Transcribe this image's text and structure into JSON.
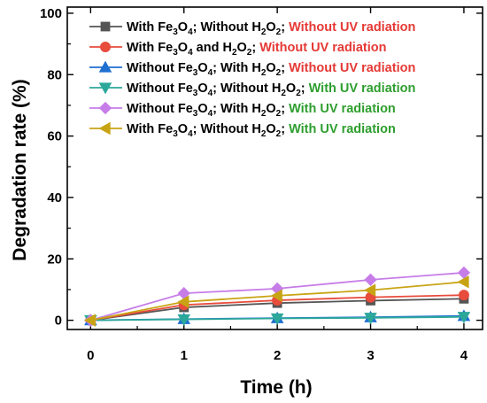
{
  "chart_data": {
    "type": "line",
    "xlabel": "Time (h)",
    "ylabel": "Degradation rate (%)",
    "xlim": [
      -0.25,
      4.2
    ],
    "ylim": [
      -3,
      102
    ],
    "x_ticks": [
      "0",
      "1",
      "2",
      "3",
      "4"
    ],
    "y_ticks": [
      "0",
      "20",
      "40",
      "60",
      "80",
      "100"
    ],
    "x": [
      0,
      1,
      2,
      3,
      4
    ],
    "legend_position": "top",
    "grid": false,
    "series": [
      {
        "marker": "square",
        "color": "#555555",
        "values": [
          0,
          4.2,
          5.6,
          6.4,
          7.0
        ],
        "legend": [
          {
            "t": "With Fe"
          },
          {
            "t": "3",
            "sub": true
          },
          {
            "t": "O"
          },
          {
            "t": "4",
            "sub": true
          },
          {
            "t": "; Without H"
          },
          {
            "t": "2",
            "sub": true
          },
          {
            "t": "O"
          },
          {
            "t": "2",
            "sub": true
          },
          {
            "t": "; "
          },
          {
            "t": "Without UV radiation",
            "color": "#e53935"
          }
        ]
      },
      {
        "marker": "circle",
        "color": "#e74c3c",
        "values": [
          0,
          5.0,
          6.5,
          7.5,
          8.2
        ],
        "legend": [
          {
            "t": "With Fe"
          },
          {
            "t": "3",
            "sub": true
          },
          {
            "t": "O"
          },
          {
            "t": "4",
            "sub": true
          },
          {
            "t": " and H"
          },
          {
            "t": "2",
            "sub": true
          },
          {
            "t": "O"
          },
          {
            "t": "2",
            "sub": true
          },
          {
            "t": "; "
          },
          {
            "t": "Without UV radiation",
            "color": "#e53935"
          }
        ]
      },
      {
        "marker": "triangle-up",
        "color": "#1f6fd1",
        "values": [
          0,
          0.4,
          0.7,
          1.0,
          1.4
        ],
        "legend": [
          {
            "t": "Without Fe"
          },
          {
            "t": "3",
            "sub": true
          },
          {
            "t": "O"
          },
          {
            "t": "4",
            "sub": true
          },
          {
            "t": "; With H"
          },
          {
            "t": "2",
            "sub": true
          },
          {
            "t": "O"
          },
          {
            "t": "2",
            "sub": true
          },
          {
            "t": "; "
          },
          {
            "t": "Without UV radiation",
            "color": "#e53935"
          }
        ]
      },
      {
        "marker": "triangle-down",
        "color": "#2ca89a",
        "values": [
          0,
          0.3,
          0.6,
          0.8,
          1.1
        ],
        "legend": [
          {
            "t": "Without Fe"
          },
          {
            "t": "3",
            "sub": true
          },
          {
            "t": "O"
          },
          {
            "t": "4",
            "sub": true
          },
          {
            "t": "; Without H"
          },
          {
            "t": "2",
            "sub": true
          },
          {
            "t": "O"
          },
          {
            "t": "2",
            "sub": true
          },
          {
            "t": "; "
          },
          {
            "t": "With UV radiation",
            "color": "#2e9e2e"
          }
        ]
      },
      {
        "marker": "diamond",
        "color": "#c77de8",
        "values": [
          0,
          8.8,
          10.3,
          13.2,
          15.5
        ],
        "legend": [
          {
            "t": "Without Fe"
          },
          {
            "t": "3",
            "sub": true
          },
          {
            "t": "O"
          },
          {
            "t": "4",
            "sub": true
          },
          {
            "t": "; With H"
          },
          {
            "t": "2",
            "sub": true
          },
          {
            "t": "O"
          },
          {
            "t": "2",
            "sub": true
          },
          {
            "t": "; "
          },
          {
            "t": "With UV radiation",
            "color": "#2e9e2e"
          }
        ]
      },
      {
        "marker": "triangle-left",
        "color": "#c8a415",
        "values": [
          0,
          6.0,
          8.0,
          9.8,
          12.5
        ],
        "legend": [
          {
            "t": "With Fe"
          },
          {
            "t": "3",
            "sub": true
          },
          {
            "t": "O"
          },
          {
            "t": "4",
            "sub": true
          },
          {
            "t": "; Without H"
          },
          {
            "t": "2",
            "sub": true
          },
          {
            "t": "O"
          },
          {
            "t": "2",
            "sub": true
          },
          {
            "t": "; "
          },
          {
            "t": "With UV radiation",
            "color": "#2e9e2e"
          }
        ]
      }
    ]
  }
}
